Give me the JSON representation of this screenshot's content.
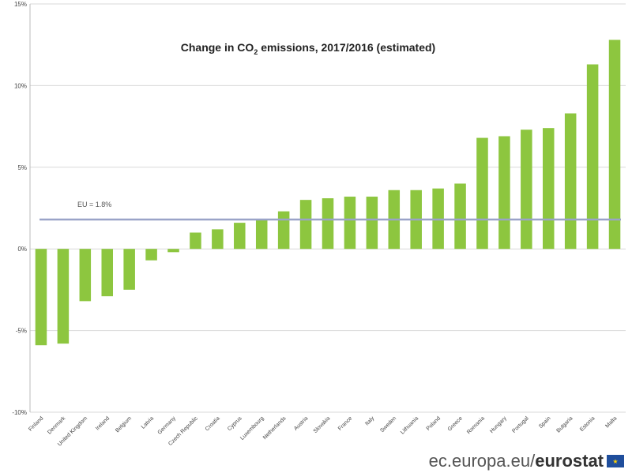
{
  "chart_data": {
    "type": "bar",
    "title_prefix": "Change in CO",
    "title_sub": "2",
    "title_suffix": " emissions, 2017/2016 (estimated)",
    "categories": [
      "Finland",
      "Denmark",
      "United Kingdom",
      "Ireland",
      "Belgium",
      "Latvia",
      "Germany",
      "Czech Republic",
      "Croatia",
      "Cyprus",
      "Luxembourg",
      "Netherlands",
      "Austria",
      "Slovakia",
      "France",
      "Italy",
      "Sweden",
      "Lithuania",
      "Poland",
      "Greece",
      "Romania",
      "Hungary",
      "Portugal",
      "Spain",
      "Bulgaria",
      "Estonia",
      "Malta"
    ],
    "values": [
      -5.9,
      -5.8,
      -3.2,
      -2.9,
      -2.5,
      -0.7,
      -0.2,
      1.0,
      1.2,
      1.6,
      1.8,
      2.3,
      3.0,
      3.1,
      3.2,
      3.2,
      3.6,
      3.6,
      3.7,
      4.0,
      6.8,
      6.9,
      7.3,
      7.4,
      8.3,
      11.3,
      12.8
    ],
    "ylim": [
      -10,
      15
    ],
    "yticks": [
      -10,
      -5,
      0,
      5,
      10,
      15
    ],
    "ytick_labels": [
      "-10%",
      "-5%",
      "0%",
      "5%",
      "10%",
      "15%"
    ],
    "reference_line": {
      "label": "EU = 1.8%",
      "value": 1.8
    },
    "grid": true,
    "colors": {
      "bar": "#8dc63f",
      "reference": "#9aa3c8",
      "grid": "#d9d9d9"
    }
  },
  "footer": {
    "site": "ec.europa.eu/",
    "brand": "eurostat"
  }
}
